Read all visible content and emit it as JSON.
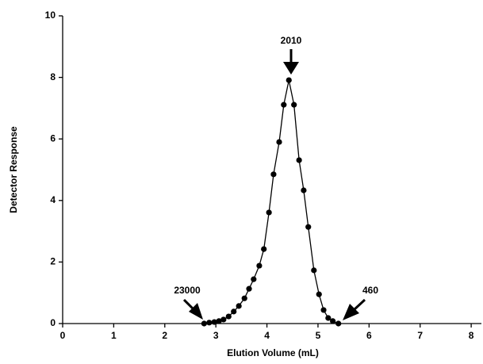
{
  "chart_data": {
    "type": "line",
    "x_label": "Elution Volume (mL)",
    "y_label": "Detector Response",
    "x": [
      2.77,
      2.87,
      2.97,
      3.06,
      3.15,
      3.25,
      3.35,
      3.45,
      3.56,
      3.65,
      3.74,
      3.85,
      3.94,
      4.04,
      4.13,
      4.24,
      4.33,
      4.43,
      4.53,
      4.63,
      4.72,
      4.81,
      4.92,
      5.02,
      5.11,
      5.2,
      5.29,
      5.4
    ],
    "series": [
      {
        "color": "#000000",
        "values": [
          0,
          0.03,
          0.05,
          0.08,
          0.13,
          0.23,
          0.39,
          0.57,
          0.82,
          1.13,
          1.44,
          1.88,
          2.42,
          3.61,
          4.85,
          5.9,
          7.11,
          7.91,
          7.11,
          5.31,
          4.33,
          3.14,
          1.73,
          0.95,
          0.44,
          0.18,
          0.08,
          0
        ]
      }
    ],
    "annotations": [
      "2010",
      "23000",
      "460"
    ],
    "xlim": [
      0,
      8.2
    ],
    "xticks": [
      0,
      1,
      2,
      3,
      4,
      5,
      6,
      7,
      8
    ],
    "ylim": [
      0,
      10
    ],
    "yticks": [
      0,
      2,
      4,
      6,
      8,
      10
    ],
    "grid": false
  }
}
